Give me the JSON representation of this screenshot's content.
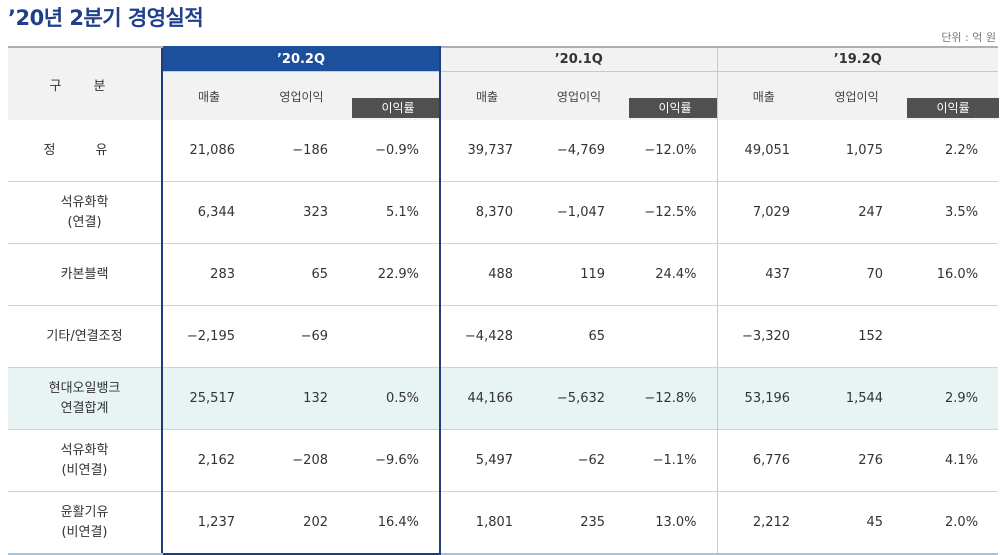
{
  "title": "’20년 2분기 경영실적",
  "unit": "단위 : 억 원",
  "header": {
    "category": "구 분",
    "periods": [
      "’20.2Q",
      "’20.1Q",
      "’19.2Q"
    ],
    "sub": [
      "매출",
      "영업이익",
      "이익률"
    ]
  },
  "rows": [
    {
      "label": [
        "정 유"
      ],
      "v": [
        "21,086",
        "−186",
        "−0.9%",
        "39,737",
        "−4,769",
        "−12.0%",
        "49,051",
        "1,075",
        "2.2%"
      ]
    },
    {
      "label": [
        "석유화학",
        "(연결)"
      ],
      "v": [
        "6,344",
        "323",
        "5.1%",
        "8,370",
        "−1,047",
        "−12.5%",
        "7,029",
        "247",
        "3.5%"
      ]
    },
    {
      "label": [
        "카본블랙"
      ],
      "v": [
        "283",
        "65",
        "22.9%",
        "488",
        "119",
        "24.4%",
        "437",
        "70",
        "16.0%"
      ]
    },
    {
      "label": [
        "기타/연결조정"
      ],
      "v": [
        "−2,195",
        "−69",
        "",
        "−4,428",
        "65",
        "",
        "−3,320",
        "152",
        ""
      ]
    },
    {
      "label": [
        "현대오일뱅크",
        "연결합계"
      ],
      "v": [
        "25,517",
        "132",
        "0.5%",
        "44,166",
        "−5,632",
        "−12.8%",
        "53,196",
        "1,544",
        "2.9%"
      ]
    },
    {
      "label": [
        "석유화학",
        "(비연결)"
      ],
      "v": [
        "2,162",
        "−208",
        "−9.6%",
        "5,497",
        "−62",
        "−1.1%",
        "6,776",
        "276",
        "4.1%"
      ]
    },
    {
      "label": [
        "윤활기유",
        "(비연결)"
      ],
      "v": [
        "1,237",
        "202",
        "16.4%",
        "1,801",
        "235",
        "13.0%",
        "2,212",
        "45",
        "2.0%"
      ]
    }
  ]
}
